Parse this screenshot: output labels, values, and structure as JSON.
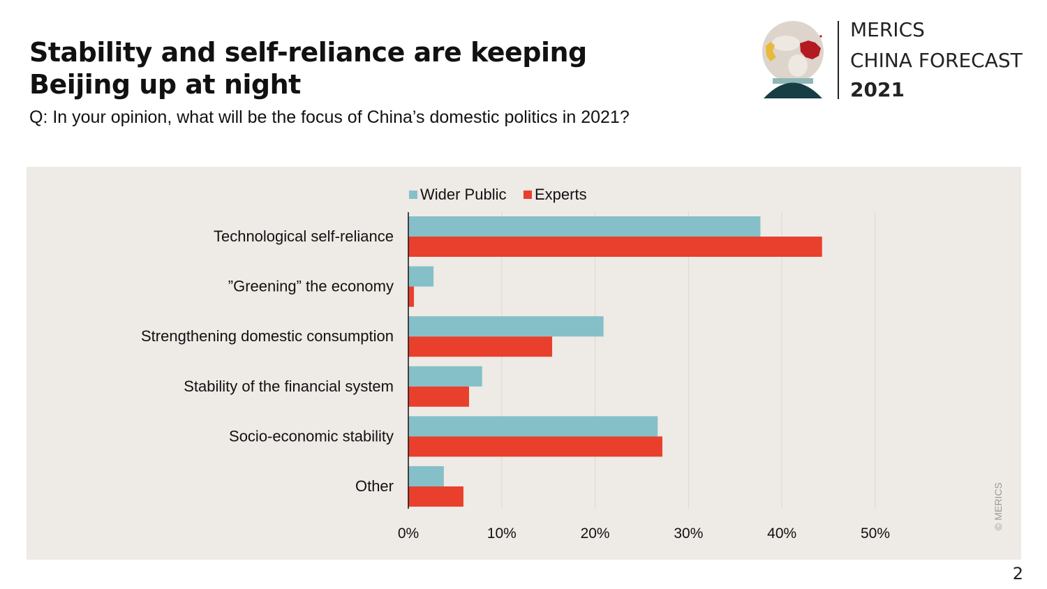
{
  "header": {
    "title": "Stability and self-reliance are keeping Beijing up at night",
    "subtitle": "Q: In your opinion, what will be the focus of China’s domestic politics in 2021?"
  },
  "logo": {
    "line1": "MERICS",
    "line2": "CHINA FORECAST",
    "line3": "2021"
  },
  "colors": {
    "wider_public": "#85c0c9",
    "experts": "#e8402c",
    "panel_background": "#eeeae6"
  },
  "footer": {
    "copyright": "© MERICS",
    "page_number": "2"
  },
  "chart_data": {
    "type": "bar",
    "orientation": "horizontal",
    "categories": [
      "Technological self-reliance",
      "”Greening” the economy",
      "Strengthening domestic consumption",
      "Stability of the financial system",
      "Socio-economic stability",
      "Other"
    ],
    "series": [
      {
        "name": "Wider Public",
        "values": [
          37.7,
          2.7,
          20.9,
          7.9,
          26.7,
          3.8
        ]
      },
      {
        "name": "Experts",
        "values": [
          44.3,
          0.6,
          15.4,
          6.5,
          27.2,
          5.9
        ]
      }
    ],
    "xlim": [
      0,
      50
    ],
    "xticks": [
      0,
      10,
      20,
      30,
      40,
      50
    ],
    "tick_labels": [
      "0%",
      "10%",
      "20%",
      "30%",
      "40%",
      "50%"
    ],
    "legend_position": "top",
    "grid": "vertical"
  }
}
